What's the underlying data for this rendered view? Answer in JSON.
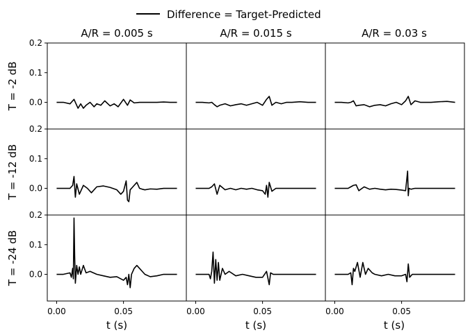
{
  "legend": {
    "label": "Difference = Target-Predicted",
    "color": "#000000"
  },
  "chart_data": {
    "type": "line",
    "col_titles": [
      "A/R = 0.005 s",
      "A/R = 0.015 s",
      "A/R = 0.03 s"
    ],
    "row_labels": [
      "T = -2 dB",
      "T = -12 dB",
      "T = -24 dB"
    ],
    "xlabel": "t (s)",
    "xlim": [
      -0.007,
      0.097
    ],
    "ylim": [
      -0.09,
      0.2
    ],
    "xticks": [
      "0.00",
      "0.05"
    ],
    "yticks": [
      "0.0",
      "0.1",
      "0.2"
    ],
    "series_color": "#000000",
    "panels": [
      [
        {
          "x": [
            0,
            0.005,
            0.01,
            0.012,
            0.013,
            0.015,
            0.016,
            0.018,
            0.02,
            0.022,
            0.025,
            0.028,
            0.03,
            0.033,
            0.036,
            0.04,
            0.043,
            0.046,
            0.05,
            0.053,
            0.055,
            0.058,
            0.062,
            0.066,
            0.07,
            0.075,
            0.08,
            0.085,
            0.09
          ],
          "y": [
            0.0,
            0.0,
            -0.005,
            0.005,
            0.01,
            -0.01,
            -0.02,
            -0.005,
            -0.02,
            -0.01,
            0.0,
            -0.015,
            -0.005,
            -0.01,
            0.005,
            -0.012,
            -0.005,
            -0.015,
            0.01,
            -0.01,
            0.008,
            -0.002,
            0.0,
            0.0,
            0.0,
            0.0,
            0.001,
            0.0,
            0.0
          ]
        },
        {
          "x": [
            0,
            0.005,
            0.01,
            0.012,
            0.014,
            0.016,
            0.018,
            0.022,
            0.026,
            0.03,
            0.034,
            0.038,
            0.042,
            0.046,
            0.05,
            0.053,
            0.055,
            0.057,
            0.06,
            0.064,
            0.068,
            0.072,
            0.078,
            0.084,
            0.09
          ],
          "y": [
            0.0,
            0.0,
            -0.002,
            0.0,
            -0.008,
            -0.015,
            -0.01,
            -0.005,
            -0.012,
            -0.008,
            -0.005,
            -0.01,
            -0.005,
            0.0,
            -0.01,
            0.01,
            0.02,
            -0.01,
            0.0,
            -0.005,
            0.0,
            0.0,
            0.002,
            0.0,
            0.0
          ]
        },
        {
          "x": [
            0,
            0.005,
            0.01,
            0.012,
            0.014,
            0.016,
            0.018,
            0.022,
            0.026,
            0.03,
            0.034,
            0.038,
            0.042,
            0.046,
            0.05,
            0.053,
            0.055,
            0.057,
            0.06,
            0.064,
            0.068,
            0.072,
            0.078,
            0.084,
            0.09
          ],
          "y": [
            0.0,
            0.0,
            -0.002,
            0.0,
            0.005,
            -0.012,
            -0.01,
            -0.008,
            -0.015,
            -0.01,
            -0.008,
            -0.012,
            -0.005,
            0.0,
            -0.008,
            0.005,
            0.02,
            -0.008,
            0.005,
            0.0,
            0.0,
            0.0,
            0.002,
            0.003,
            0.0
          ]
        }
      ],
      [
        {
          "x": [
            0,
            0.005,
            0.01,
            0.012,
            0.013,
            0.014,
            0.015,
            0.017,
            0.02,
            0.023,
            0.026,
            0.03,
            0.035,
            0.04,
            0.045,
            0.048,
            0.05,
            0.052,
            0.053,
            0.054,
            0.055,
            0.057,
            0.06,
            0.062,
            0.064,
            0.066,
            0.07,
            0.075,
            0.08,
            0.085,
            0.09
          ],
          "y": [
            0.0,
            0.0,
            0.0,
            0.01,
            0.04,
            -0.03,
            0.015,
            -0.02,
            0.01,
            0.0,
            -0.015,
            0.005,
            0.008,
            0.003,
            -0.005,
            -0.02,
            -0.01,
            0.025,
            -0.04,
            -0.045,
            -0.005,
            0.005,
            0.02,
            0.0,
            -0.003,
            -0.005,
            -0.002,
            -0.003,
            0.0,
            0.0,
            0.0
          ]
        },
        {
          "x": [
            0,
            0.005,
            0.01,
            0.012,
            0.014,
            0.016,
            0.018,
            0.022,
            0.026,
            0.03,
            0.034,
            0.038,
            0.042,
            0.046,
            0.05,
            0.052,
            0.053,
            0.054,
            0.055,
            0.057,
            0.06,
            0.065,
            0.07,
            0.075,
            0.08,
            0.085,
            0.09
          ],
          "y": [
            0.0,
            0.0,
            0.0,
            0.005,
            0.015,
            -0.02,
            0.01,
            -0.005,
            0.0,
            -0.005,
            0.0,
            -0.003,
            0.0,
            -0.005,
            -0.008,
            -0.02,
            0.01,
            -0.03,
            0.02,
            -0.01,
            0.0,
            0.0,
            0.0,
            0.0,
            0.0,
            0.0,
            0.0
          ]
        },
        {
          "x": [
            0,
            0.005,
            0.01,
            0.012,
            0.014,
            0.016,
            0.018,
            0.022,
            0.026,
            0.03,
            0.034,
            0.038,
            0.042,
            0.046,
            0.05,
            0.053,
            0.0545,
            0.055,
            0.0555,
            0.057,
            0.06,
            0.065,
            0.07,
            0.075,
            0.08,
            0.085,
            0.09
          ],
          "y": [
            0.0,
            0.0,
            0.0,
            0.005,
            0.01,
            0.012,
            -0.008,
            0.005,
            -0.003,
            0.0,
            -0.003,
            -0.005,
            -0.003,
            -0.004,
            -0.006,
            -0.008,
            0.058,
            -0.025,
            0.0,
            -0.003,
            0.0,
            0.0,
            0.0,
            0.0,
            0.0,
            0.0,
            0.0
          ]
        }
      ],
      [
        {
          "x": [
            0,
            0.005,
            0.01,
            0.011,
            0.012,
            0.0125,
            0.013,
            0.0135,
            0.014,
            0.015,
            0.016,
            0.017,
            0.018,
            0.02,
            0.022,
            0.025,
            0.03,
            0.035,
            0.04,
            0.045,
            0.05,
            0.052,
            0.053,
            0.054,
            0.055,
            0.056,
            0.058,
            0.06,
            0.062,
            0.064,
            0.066,
            0.07,
            0.075,
            0.08,
            0.085,
            0.09
          ],
          "y": [
            0.0,
            0.0,
            0.005,
            -0.01,
            0.02,
            -0.015,
            0.19,
            0.06,
            -0.03,
            0.03,
            0.0,
            0.025,
            0.0,
            0.03,
            0.005,
            0.01,
            0.0,
            -0.005,
            -0.01,
            -0.008,
            -0.02,
            -0.01,
            -0.035,
            0.0,
            -0.045,
            0.0,
            0.02,
            0.03,
            0.02,
            0.01,
            0.0,
            -0.008,
            -0.005,
            0.0,
            0.0,
            0.0
          ]
        },
        {
          "x": [
            0,
            0.005,
            0.01,
            0.011,
            0.012,
            0.013,
            0.014,
            0.015,
            0.016,
            0.017,
            0.018,
            0.02,
            0.022,
            0.025,
            0.03,
            0.035,
            0.04,
            0.045,
            0.05,
            0.053,
            0.055,
            0.056,
            0.058,
            0.06,
            0.065,
            0.07,
            0.075,
            0.08,
            0.085,
            0.09
          ],
          "y": [
            0.0,
            0.0,
            0.0,
            -0.015,
            0.01,
            0.075,
            -0.03,
            0.05,
            -0.02,
            0.04,
            -0.02,
            0.02,
            0.0,
            0.01,
            -0.005,
            0.0,
            -0.005,
            -0.01,
            -0.01,
            0.01,
            -0.035,
            0.005,
            0.0,
            0.0,
            0.0,
            0.0,
            0.0,
            0.0,
            0.0,
            0.0
          ]
        },
        {
          "x": [
            0,
            0.005,
            0.01,
            0.012,
            0.013,
            0.014,
            0.015,
            0.017,
            0.019,
            0.021,
            0.023,
            0.025,
            0.028,
            0.03,
            0.035,
            0.04,
            0.045,
            0.05,
            0.053,
            0.054,
            0.055,
            0.056,
            0.058,
            0.06,
            0.065,
            0.07,
            0.075,
            0.08,
            0.085,
            0.09
          ],
          "y": [
            0.0,
            0.0,
            0.0,
            0.005,
            -0.035,
            0.02,
            0.01,
            0.04,
            -0.01,
            0.04,
            0.0,
            0.02,
            0.005,
            0.0,
            -0.005,
            0.0,
            -0.005,
            -0.005,
            0.0,
            -0.025,
            0.035,
            -0.01,
            0.0,
            0.0,
            0.0,
            0.0,
            0.0,
            0.0,
            0.0,
            0.0
          ]
        }
      ]
    ]
  }
}
